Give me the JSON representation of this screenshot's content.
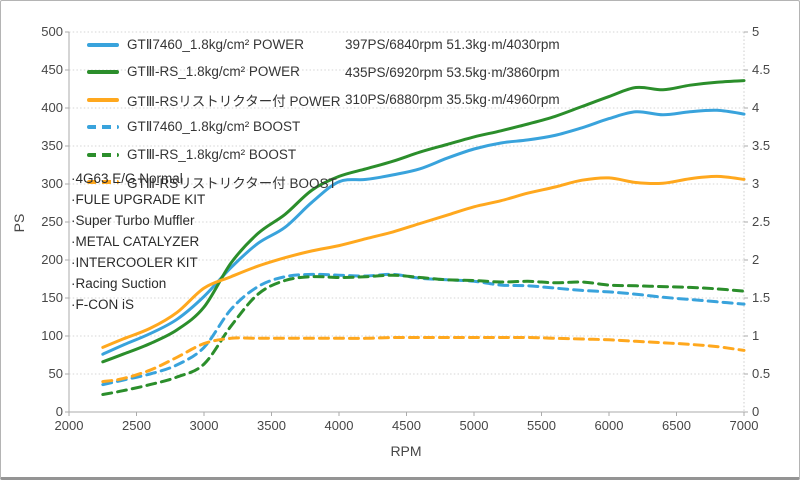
{
  "axes": {
    "left_title": "PS",
    "bottom_title": "RPM"
  },
  "legend": {
    "entries": [
      {
        "label": "GTⅡ7460_1.8kg/cm² POWER",
        "stats": "397PS/6840rpm 51.3kg·m/4030rpm",
        "color": "#39a3dc",
        "dash": false
      },
      {
        "label": "GTⅢ-RS_1.8kg/cm² POWER",
        "stats": "435PS/6920rpm 53.5kg·m/3860rpm",
        "color": "#2b8e2b",
        "dash": false
      },
      {
        "label": "GTⅢ-RSリストリクター付 POWER",
        "stats": "310PS/6880rpm 35.5kg·m/4960rpm",
        "color": "#ffa81e",
        "dash": false
      },
      {
        "label": "GTⅡ7460_1.8kg/cm² BOOST",
        "stats": "",
        "color": "#39a3dc",
        "dash": true
      },
      {
        "label": "GTⅢ-RS_1.8kg/cm² BOOST",
        "stats": "",
        "color": "#2b8e2b",
        "dash": true
      },
      {
        "label": "GTⅢ-RSリストリクター付 BOOST",
        "stats": "",
        "color": "#ffa81e",
        "dash": true
      }
    ]
  },
  "annotations": {
    "items": [
      "·4G63 E/G Normal",
      "·FULE UPGRADE KIT",
      "·Super Turbo Muffler",
      "·METAL CATALYZER",
      "·INTERCOOLER KIT",
      "·Racing Suction",
      "·F-CON iS"
    ]
  },
  "chart_data": {
    "type": "line",
    "title": "",
    "xlabel": "RPM",
    "ylabel_left": "PS",
    "ylabel_right": "",
    "xlim": [
      2000,
      7000
    ],
    "xticks": [
      2000,
      2500,
      3000,
      3500,
      4000,
      4500,
      5000,
      5500,
      6000,
      6500,
      7000
    ],
    "ylim_left": [
      0,
      500
    ],
    "yticks_left": [
      0,
      50,
      100,
      150,
      200,
      250,
      300,
      350,
      400,
      450,
      500
    ],
    "ylim_right": [
      0,
      5
    ],
    "yticks_right": [
      0,
      0.5,
      1,
      1.5,
      2,
      2.5,
      3,
      3.5,
      4,
      4.5,
      5
    ],
    "grid": "horizontal-only",
    "legend_position": "top-left-inside",
    "x": [
      2250,
      2400,
      2600,
      2800,
      3000,
      3200,
      3400,
      3600,
      3800,
      4000,
      4200,
      4400,
      4600,
      4800,
      5000,
      5200,
      5400,
      5600,
      5800,
      6000,
      6200,
      6400,
      6600,
      6800,
      7000
    ],
    "series": [
      {
        "name": "GTⅡ7460_1.8kg/cm² POWER",
        "axis": "left",
        "unit": "PS",
        "line": "solid",
        "color": "#39a3dc",
        "values": [
          76,
          88,
          103,
          122,
          152,
          190,
          222,
          243,
          276,
          303,
          306,
          312,
          320,
          334,
          346,
          354,
          358,
          364,
          374,
          386,
          395,
          391,
          395,
          397,
          392
        ],
        "peak": "397PS/6840rpm 51.3kg·m/4030rpm"
      },
      {
        "name": "GTⅢ-RS_1.8kg/cm² POWER",
        "axis": "left",
        "unit": "PS",
        "line": "solid",
        "color": "#2b8e2b",
        "values": [
          66,
          76,
          90,
          108,
          138,
          196,
          235,
          260,
          292,
          310,
          320,
          330,
          342,
          352,
          362,
          370,
          379,
          389,
          402,
          415,
          427,
          424,
          430,
          434,
          436
        ],
        "peak": "435PS/6920rpm 53.5kg·m/3860rpm"
      },
      {
        "name": "GTⅢ-RSリストリクター付 POWER",
        "axis": "left",
        "unit": "PS",
        "line": "solid",
        "color": "#ffa81e",
        "values": [
          85,
          96,
          110,
          131,
          163,
          178,
          192,
          203,
          212,
          219,
          228,
          237,
          248,
          259,
          270,
          278,
          288,
          296,
          305,
          308,
          302,
          301,
          307,
          310,
          306
        ],
        "peak": "310PS/6880rpm 35.5kg·m/4960rpm"
      },
      {
        "name": "GTⅡ7460_1.8kg/cm² BOOST",
        "axis": "right",
        "unit": "kg/cm²",
        "line": "dashed",
        "color": "#39a3dc",
        "values": [
          0.36,
          0.42,
          0.5,
          0.62,
          0.85,
          1.35,
          1.65,
          1.78,
          1.81,
          1.8,
          1.79,
          1.81,
          1.76,
          1.74,
          1.72,
          1.67,
          1.66,
          1.63,
          1.6,
          1.58,
          1.55,
          1.51,
          1.48,
          1.45,
          1.42
        ]
      },
      {
        "name": "GTⅢ-RS_1.8kg/cm² BOOST",
        "axis": "right",
        "unit": "kg/cm²",
        "line": "dashed",
        "color": "#2b8e2b",
        "values": [
          0.23,
          0.28,
          0.36,
          0.46,
          0.63,
          1.13,
          1.55,
          1.73,
          1.78,
          1.77,
          1.78,
          1.8,
          1.77,
          1.74,
          1.73,
          1.71,
          1.72,
          1.7,
          1.71,
          1.67,
          1.66,
          1.65,
          1.64,
          1.62,
          1.59
        ]
      },
      {
        "name": "GTⅢ-RSリストリクター付 BOOST",
        "axis": "right",
        "unit": "kg/cm²",
        "line": "dashed",
        "color": "#ffa81e",
        "values": [
          0.4,
          0.44,
          0.55,
          0.72,
          0.9,
          0.97,
          0.97,
          0.97,
          0.97,
          0.97,
          0.97,
          0.98,
          0.98,
          0.98,
          0.98,
          0.98,
          0.98,
          0.97,
          0.96,
          0.95,
          0.93,
          0.91,
          0.89,
          0.86,
          0.81
        ]
      }
    ]
  }
}
